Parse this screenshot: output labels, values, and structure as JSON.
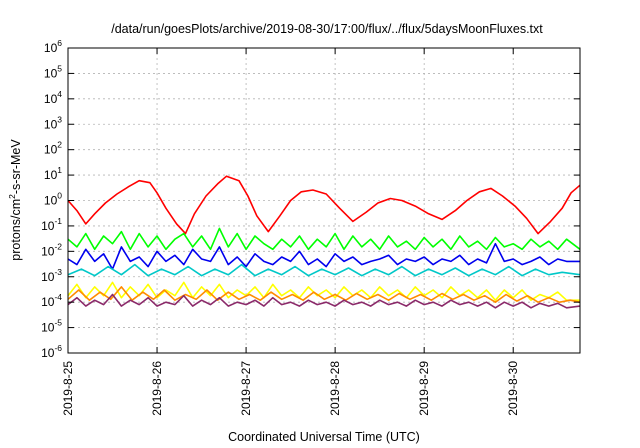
{
  "chart_data": {
    "type": "line",
    "title": "/data/run/goesPlots/archive/2019-08-30/17:00/flux/../flux/5daysMoonFluxes.txt",
    "xlabel": "Coordinated Universal Time (UTC)",
    "ylabel": {
      "main": "protons/cm",
      "sup": "2",
      "rest": "-s-sr-MeV"
    },
    "x_unit": "days since 2019-08-25 00:00 UTC",
    "xlim": [
      0,
      5.75
    ],
    "x_ticks": [
      {
        "label": "2019-8-25",
        "value": 0
      },
      {
        "label": "2019-8-26",
        "value": 1
      },
      {
        "label": "2019-8-27",
        "value": 2
      },
      {
        "label": "2019-8-28",
        "value": 3
      },
      {
        "label": "2019-8-29",
        "value": 4
      },
      {
        "label": "2019-8-30",
        "value": 5
      }
    ],
    "y_scale": "log",
    "ylim": [
      1e-06,
      1000000.0
    ],
    "y_ticks": [
      {
        "base": "10",
        "exp": "-6",
        "value": -6
      },
      {
        "base": "10",
        "exp": "-5",
        "value": -5
      },
      {
        "base": "10",
        "exp": "-4",
        "value": -4
      },
      {
        "base": "10",
        "exp": "-3",
        "value": -3
      },
      {
        "base": "10",
        "exp": "-2",
        "value": -2
      },
      {
        "base": "10",
        "exp": "-1",
        "value": -1
      },
      {
        "base": "10",
        "exp": "0",
        "value": 0
      },
      {
        "base": "10",
        "exp": "1",
        "value": 1
      },
      {
        "base": "10",
        "exp": "2",
        "value": 2
      },
      {
        "base": "10",
        "exp": "3",
        "value": 3
      },
      {
        "base": "10",
        "exp": "4",
        "value": 4
      },
      {
        "base": "10",
        "exp": "5",
        "value": 5
      },
      {
        "base": "10",
        "exp": "6",
        "value": 6
      }
    ],
    "grid": true,
    "legend": "none",
    "series": [
      {
        "color": "#ff0000",
        "x": [
          0,
          0.1,
          0.2,
          0.3,
          0.42,
          0.55,
          0.68,
          0.8,
          0.92,
          1.0,
          1.1,
          1.22,
          1.32,
          1.42,
          1.55,
          1.68,
          1.78,
          1.92,
          2.02,
          2.12,
          2.25,
          2.38,
          2.5,
          2.62,
          2.75,
          2.9,
          3.05,
          3.2,
          3.35,
          3.48,
          3.62,
          3.75,
          3.9,
          4.05,
          4.2,
          4.35,
          4.48,
          4.62,
          4.75,
          4.88,
          5.02,
          5.15,
          5.28,
          5.42,
          5.55,
          5.65,
          5.75
        ],
        "y": [
          1.0,
          0.4,
          0.12,
          0.3,
          0.8,
          1.8,
          3.5,
          6.0,
          5.0,
          2.0,
          0.5,
          0.12,
          0.05,
          0.3,
          1.5,
          4.5,
          9.0,
          6.0,
          1.5,
          0.25,
          0.06,
          0.25,
          1.0,
          2.2,
          2.6,
          1.8,
          0.5,
          0.15,
          0.35,
          0.8,
          1.2,
          1.0,
          0.6,
          0.3,
          0.18,
          0.4,
          1.0,
          2.2,
          3.0,
          1.5,
          0.6,
          0.2,
          0.05,
          0.15,
          0.5,
          2.0,
          4.0
        ]
      },
      {
        "color": "#00ff00",
        "x": [
          0,
          0.1,
          0.2,
          0.3,
          0.4,
          0.5,
          0.6,
          0.7,
          0.8,
          0.9,
          1.0,
          1.1,
          1.2,
          1.3,
          1.4,
          1.5,
          1.6,
          1.7,
          1.8,
          1.9,
          2.0,
          2.1,
          2.2,
          2.3,
          2.4,
          2.5,
          2.6,
          2.7,
          2.8,
          2.9,
          3.0,
          3.1,
          3.2,
          3.3,
          3.4,
          3.5,
          3.6,
          3.7,
          3.8,
          3.9,
          4.0,
          4.1,
          4.2,
          4.3,
          4.4,
          4.5,
          4.6,
          4.7,
          4.8,
          4.9,
          5.0,
          5.1,
          5.2,
          5.3,
          5.4,
          5.5,
          5.6,
          5.75
        ],
        "y": [
          0.03,
          0.015,
          0.05,
          0.012,
          0.04,
          0.02,
          0.06,
          0.012,
          0.05,
          0.015,
          0.04,
          0.012,
          0.03,
          0.05,
          0.015,
          0.04,
          0.012,
          0.08,
          0.015,
          0.05,
          0.012,
          0.04,
          0.02,
          0.012,
          0.03,
          0.015,
          0.04,
          0.012,
          0.03,
          0.015,
          0.05,
          0.012,
          0.04,
          0.015,
          0.03,
          0.012,
          0.04,
          0.015,
          0.025,
          0.012,
          0.035,
          0.015,
          0.03,
          0.012,
          0.04,
          0.015,
          0.025,
          0.012,
          0.035,
          0.015,
          0.02,
          0.012,
          0.03,
          0.015,
          0.025,
          0.012,
          0.03,
          0.012
        ]
      },
      {
        "color": "#0000ee",
        "x": [
          0,
          0.1,
          0.2,
          0.3,
          0.4,
          0.5,
          0.6,
          0.7,
          0.8,
          0.9,
          1.0,
          1.1,
          1.2,
          1.3,
          1.4,
          1.5,
          1.6,
          1.7,
          1.8,
          1.9,
          2.0,
          2.1,
          2.2,
          2.3,
          2.4,
          2.5,
          2.6,
          2.7,
          2.8,
          2.9,
          3.0,
          3.1,
          3.2,
          3.3,
          3.4,
          3.5,
          3.6,
          3.7,
          3.8,
          3.9,
          4.0,
          4.1,
          4.2,
          4.3,
          4.4,
          4.5,
          4.6,
          4.7,
          4.8,
          4.9,
          5.0,
          5.1,
          5.2,
          5.3,
          5.4,
          5.5,
          5.6,
          5.75
        ],
        "y": [
          0.005,
          0.003,
          0.012,
          0.004,
          0.008,
          0.002,
          0.015,
          0.004,
          0.006,
          0.0025,
          0.01,
          0.004,
          0.007,
          0.003,
          0.012,
          0.005,
          0.004,
          0.015,
          0.003,
          0.006,
          0.0025,
          0.008,
          0.004,
          0.003,
          0.006,
          0.004,
          0.01,
          0.003,
          0.005,
          0.0025,
          0.008,
          0.004,
          0.006,
          0.003,
          0.004,
          0.005,
          0.007,
          0.003,
          0.005,
          0.004,
          0.006,
          0.003,
          0.005,
          0.004,
          0.007,
          0.003,
          0.005,
          0.0035,
          0.02,
          0.004,
          0.005,
          0.003,
          0.004,
          0.006,
          0.003,
          0.005,
          0.004,
          0.004
        ]
      },
      {
        "color": "#00c8c8",
        "x": [
          0,
          0.15,
          0.3,
          0.45,
          0.6,
          0.75,
          0.9,
          1.05,
          1.2,
          1.35,
          1.5,
          1.65,
          1.8,
          1.95,
          2.1,
          2.25,
          2.4,
          2.55,
          2.7,
          2.85,
          3.0,
          3.15,
          3.3,
          3.45,
          3.6,
          3.75,
          3.9,
          4.05,
          4.2,
          4.35,
          4.5,
          4.65,
          4.8,
          4.95,
          5.1,
          5.25,
          5.4,
          5.55,
          5.75
        ],
        "y": [
          0.0012,
          0.002,
          0.0011,
          0.0025,
          0.0012,
          0.003,
          0.0011,
          0.002,
          0.0012,
          0.0025,
          0.0011,
          0.002,
          0.0012,
          0.003,
          0.0011,
          0.002,
          0.0012,
          0.0025,
          0.0011,
          0.002,
          0.0012,
          0.0022,
          0.0011,
          0.002,
          0.0012,
          0.0025,
          0.0011,
          0.002,
          0.0012,
          0.0022,
          0.0011,
          0.002,
          0.0012,
          0.0025,
          0.0011,
          0.002,
          0.0012,
          0.0015,
          0.0012
        ]
      },
      {
        "color": "#ffff00",
        "x": [
          0,
          0.1,
          0.2,
          0.3,
          0.4,
          0.5,
          0.6,
          0.7,
          0.8,
          0.9,
          1.0,
          1.1,
          1.2,
          1.3,
          1.4,
          1.5,
          1.6,
          1.7,
          1.8,
          1.9,
          2.0,
          2.1,
          2.2,
          2.3,
          2.4,
          2.5,
          2.6,
          2.7,
          2.8,
          2.9,
          3.0,
          3.1,
          3.2,
          3.3,
          3.4,
          3.5,
          3.6,
          3.7,
          3.8,
          3.9,
          4.0,
          4.1,
          4.2,
          4.3,
          4.4,
          4.5,
          4.6,
          4.7,
          4.8,
          4.9,
          5.0,
          5.1,
          5.2,
          5.3,
          5.4,
          5.5,
          5.6,
          5.75
        ],
        "y": [
          0.00018,
          0.0005,
          0.00015,
          0.0004,
          0.00018,
          0.0006,
          0.00015,
          0.0004,
          0.00018,
          0.0005,
          0.00015,
          0.0003,
          0.00018,
          0.0006,
          0.00015,
          0.0004,
          0.00018,
          0.0005,
          0.00015,
          0.0003,
          0.00018,
          0.0004,
          0.00015,
          0.0005,
          0.00018,
          0.0003,
          0.00015,
          0.0004,
          0.00018,
          0.0003,
          0.00015,
          0.0004,
          0.00018,
          0.0003,
          0.00015,
          0.0004,
          0.00018,
          0.0003,
          0.00015,
          0.0004,
          0.00018,
          0.0003,
          0.00015,
          0.0004,
          0.00018,
          0.0003,
          0.00015,
          0.0003,
          0.00012,
          0.0003,
          0.00015,
          0.0003,
          0.00012,
          0.0002,
          0.00015,
          0.00025,
          0.00012,
          0.00012
        ]
      },
      {
        "color": "#ff8c00",
        "x": [
          0,
          0.12,
          0.24,
          0.36,
          0.48,
          0.6,
          0.72,
          0.84,
          0.96,
          1.08,
          1.2,
          1.32,
          1.44,
          1.56,
          1.68,
          1.8,
          1.92,
          2.04,
          2.16,
          2.28,
          2.4,
          2.52,
          2.64,
          2.76,
          2.88,
          3.0,
          3.12,
          3.24,
          3.36,
          3.48,
          3.6,
          3.72,
          3.84,
          3.96,
          4.08,
          4.2,
          4.32,
          4.44,
          4.56,
          4.68,
          4.8,
          4.92,
          5.04,
          5.16,
          5.28,
          5.4,
          5.52,
          5.64,
          5.75
        ],
        "y": [
          0.00013,
          0.0003,
          0.00012,
          0.00025,
          0.00013,
          0.0004,
          0.00012,
          0.00025,
          0.00013,
          0.0003,
          0.00012,
          0.0002,
          0.00013,
          0.0003,
          0.00012,
          0.00025,
          0.00013,
          0.0002,
          0.00012,
          0.00025,
          0.00013,
          0.0002,
          0.00012,
          0.00025,
          0.00013,
          0.0002,
          0.00012,
          0.00022,
          0.00013,
          0.0002,
          0.00012,
          0.00022,
          0.00013,
          0.0002,
          0.00012,
          0.00022,
          0.00013,
          0.0002,
          0.00012,
          0.00018,
          0.0001,
          0.0002,
          0.00011,
          0.00018,
          0.0001,
          0.00015,
          0.0001,
          0.00012,
          0.0001
        ]
      },
      {
        "color": "#8b2a6a",
        "x": [
          0,
          0.1,
          0.2,
          0.3,
          0.4,
          0.5,
          0.6,
          0.7,
          0.8,
          0.9,
          1.0,
          1.1,
          1.2,
          1.3,
          1.4,
          1.5,
          1.6,
          1.7,
          1.8,
          1.9,
          2.0,
          2.1,
          2.2,
          2.3,
          2.4,
          2.5,
          2.6,
          2.7,
          2.8,
          2.9,
          3.0,
          3.1,
          3.2,
          3.3,
          3.4,
          3.5,
          3.6,
          3.7,
          3.8,
          3.9,
          4.0,
          4.1,
          4.2,
          4.3,
          4.4,
          4.5,
          4.6,
          4.7,
          4.8,
          4.9,
          5.0,
          5.1,
          5.2,
          5.3,
          5.4,
          5.5,
          5.6,
          5.75
        ],
        "y": [
          8e-05,
          0.00015,
          7e-05,
          0.00012,
          8e-05,
          0.0002,
          7e-05,
          0.00012,
          8e-05,
          0.00015,
          7e-05,
          0.0001,
          8e-05,
          0.00018,
          7e-05,
          0.00012,
          8e-05,
          0.00015,
          7e-05,
          0.0001,
          8e-05,
          0.00012,
          7e-05,
          0.00015,
          8e-05,
          0.0001,
          7e-05,
          0.00012,
          8e-05,
          0.0001,
          7e-05,
          0.00012,
          8e-05,
          0.0001,
          7e-05,
          0.00012,
          8e-05,
          0.0001,
          7e-05,
          0.00012,
          8e-05,
          0.0001,
          7e-05,
          0.00012,
          8e-05,
          0.0001,
          7e-05,
          0.0001,
          6e-05,
          0.0001,
          7e-05,
          0.0001,
          6e-05,
          9e-05,
          7e-05,
          9e-05,
          6e-05,
          7e-05
        ]
      }
    ]
  }
}
